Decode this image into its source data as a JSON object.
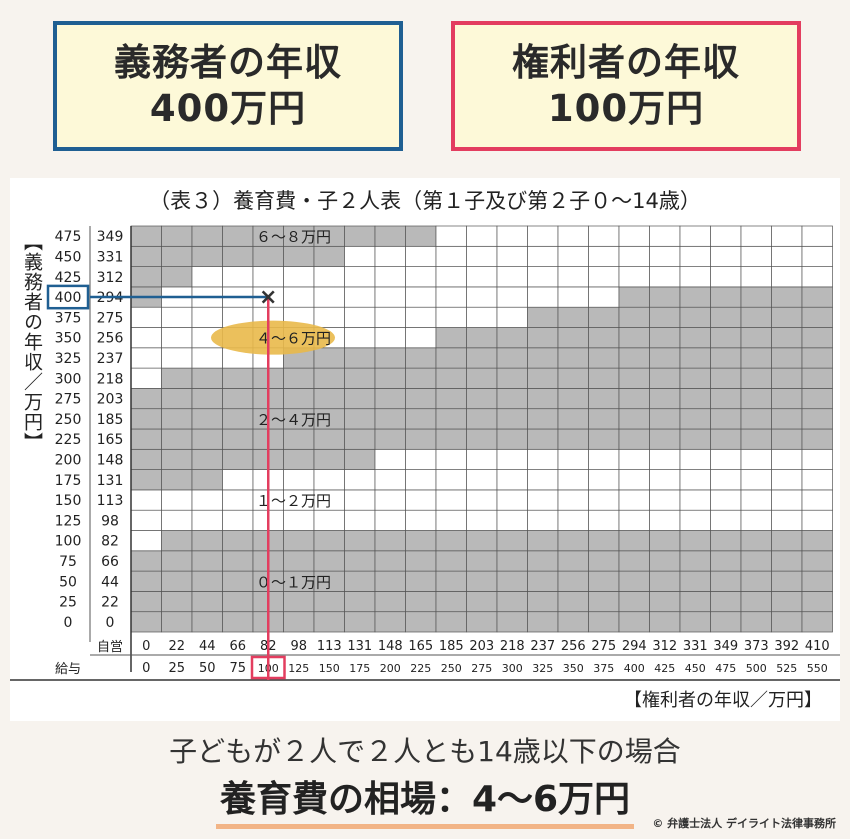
{
  "boxes": {
    "obligor": {
      "line1": "義務者の年収",
      "line2": "400万円",
      "border": "#1f5f92"
    },
    "entitled": {
      "line1": "権利者の年収",
      "line2": "100万円",
      "border": "#e33d5f"
    }
  },
  "chart_data": {
    "type": "heatmap",
    "title": "（表３）養育費・子２人表（第１子及び第２子０～14歳）",
    "ylabel": "【義務者の年収／万円】",
    "xlabel": "【権利者の年収／万円】",
    "y_salary": [
      "0",
      "25",
      "50",
      "75",
      "100",
      "125",
      "150",
      "175",
      "200",
      "225",
      "250",
      "275",
      "300",
      "325",
      "350",
      "375",
      "400",
      "425",
      "450",
      "475"
    ],
    "y_self": [
      "0",
      "22",
      "44",
      "66",
      "82",
      "98",
      "113",
      "131",
      "148",
      "165",
      "185",
      "203",
      "218",
      "237",
      "256",
      "275",
      "294",
      "312",
      "331",
      "349"
    ],
    "x_row_label_self": "自営",
    "x_row_label_salary": "給与",
    "x_self": [
      "0",
      "22",
      "44",
      "66",
      "82",
      "98",
      "113",
      "131",
      "148",
      "165",
      "185",
      "203",
      "218",
      "237",
      "256",
      "275",
      "294",
      "312",
      "331",
      "349",
      "373",
      "392",
      "410"
    ],
    "x_salary": [
      "0",
      "25",
      "50",
      "75",
      "100",
      "125",
      "150",
      "175",
      "200",
      "225",
      "250",
      "275",
      "300",
      "325",
      "350",
      "375",
      "400",
      "425",
      "450",
      "475",
      "500",
      "525",
      "550"
    ],
    "bands": [
      {
        "label": "０～１万円",
        "min": 0,
        "max": 1
      },
      {
        "label": "１～２万円",
        "min": 1,
        "max": 2
      },
      {
        "label": "２～４万円",
        "min": 2,
        "max": 4
      },
      {
        "label": "４～６万円",
        "min": 4,
        "max": 6
      },
      {
        "label": "６～８万円",
        "min": 6,
        "max": 8
      }
    ],
    "band_index_by_row": [
      [
        0,
        0,
        0,
        0,
        0,
        0,
        0,
        0,
        0,
        0,
        0,
        0,
        0,
        0,
        0,
        0,
        0,
        0,
        0,
        0,
        0,
        0,
        0
      ],
      [
        0,
        0,
        0,
        0,
        0,
        0,
        0,
        0,
        0,
        0,
        0,
        0,
        0,
        0,
        0,
        0,
        0,
        0,
        0,
        0,
        0,
        0,
        0
      ],
      [
        0,
        0,
        0,
        0,
        0,
        0,
        0,
        0,
        0,
        0,
        0,
        0,
        0,
        0,
        0,
        0,
        0,
        0,
        0,
        0,
        0,
        0,
        0
      ],
      [
        0,
        0,
        0,
        0,
        0,
        0,
        0,
        0,
        0,
        0,
        0,
        0,
        0,
        0,
        0,
        0,
        0,
        0,
        0,
        0,
        0,
        0,
        0
      ],
      [
        1,
        0,
        0,
        0,
        0,
        0,
        0,
        0,
        0,
        0,
        0,
        0,
        0,
        0,
        0,
        0,
        0,
        0,
        0,
        0,
        0,
        0,
        0
      ],
      [
        1,
        1,
        1,
        1,
        1,
        1,
        1,
        1,
        1,
        1,
        1,
        1,
        1,
        1,
        1,
        1,
        1,
        1,
        1,
        1,
        1,
        1,
        1
      ],
      [
        1,
        1,
        1,
        1,
        1,
        1,
        1,
        1,
        1,
        1,
        1,
        1,
        1,
        1,
        1,
        1,
        1,
        1,
        1,
        1,
        1,
        1,
        1
      ],
      [
        2,
        2,
        2,
        1,
        1,
        1,
        1,
        1,
        1,
        1,
        1,
        1,
        1,
        1,
        1,
        1,
        1,
        1,
        1,
        1,
        1,
        1,
        1
      ],
      [
        2,
        2,
        2,
        2,
        2,
        2,
        2,
        2,
        1,
        1,
        1,
        1,
        1,
        1,
        1,
        1,
        1,
        1,
        1,
        1,
        1,
        1,
        1
      ],
      [
        2,
        2,
        2,
        2,
        2,
        2,
        2,
        2,
        2,
        2,
        2,
        2,
        2,
        2,
        2,
        2,
        2,
        2,
        2,
        2,
        2,
        2,
        2
      ],
      [
        2,
        2,
        2,
        2,
        2,
        2,
        2,
        2,
        2,
        2,
        2,
        2,
        2,
        2,
        2,
        2,
        2,
        2,
        2,
        2,
        2,
        2,
        2
      ],
      [
        2,
        2,
        2,
        2,
        2,
        2,
        2,
        2,
        2,
        2,
        2,
        2,
        2,
        2,
        2,
        2,
        2,
        2,
        2,
        2,
        2,
        2,
        2
      ],
      [
        3,
        2,
        2,
        2,
        2,
        2,
        2,
        2,
        2,
        2,
        2,
        2,
        2,
        2,
        2,
        2,
        2,
        2,
        2,
        2,
        2,
        2,
        2
      ],
      [
        3,
        3,
        3,
        3,
        3,
        2,
        2,
        2,
        2,
        2,
        2,
        2,
        2,
        2,
        2,
        2,
        2,
        2,
        2,
        2,
        2,
        2,
        2
      ],
      [
        3,
        3,
        3,
        3,
        3,
        3,
        3,
        3,
        3,
        3,
        2,
        2,
        2,
        2,
        2,
        2,
        2,
        2,
        2,
        2,
        2,
        2,
        2
      ],
      [
        3,
        3,
        3,
        3,
        3,
        3,
        3,
        3,
        3,
        3,
        3,
        3,
        3,
        2,
        2,
        2,
        2,
        2,
        2,
        2,
        2,
        2,
        2
      ],
      [
        4,
        3,
        3,
        3,
        3,
        3,
        3,
        3,
        3,
        3,
        3,
        3,
        3,
        3,
        3,
        3,
        2,
        2,
        2,
        2,
        2,
        2,
        2
      ],
      [
        4,
        4,
        3,
        3,
        3,
        3,
        3,
        3,
        3,
        3,
        3,
        3,
        3,
        3,
        3,
        3,
        3,
        3,
        3,
        3,
        3,
        3,
        3
      ],
      [
        4,
        4,
        4,
        4,
        4,
        4,
        4,
        3,
        3,
        3,
        3,
        3,
        3,
        3,
        3,
        3,
        3,
        3,
        3,
        3,
        3,
        3,
        3
      ],
      [
        4,
        4,
        4,
        4,
        4,
        4,
        4,
        4,
        4,
        4,
        3,
        3,
        3,
        3,
        3,
        3,
        3,
        3,
        3,
        3,
        3,
        3,
        3
      ]
    ],
    "band_colors": [
      "#b9b9b9",
      "#ffffff"
    ],
    "highlight": {
      "obligor_salary": "400",
      "entitled_salary": "100",
      "result": "４～６万円"
    },
    "accent_blue": "#1f5f92",
    "accent_red": "#e33d5f",
    "ellipse_color": "#e9b94a"
  },
  "summary": {
    "line1": "子どもが２人で２人とも14歳以下の場合",
    "line2": "養育費の相場：4〜6万円"
  },
  "credit": "© 弁護士法人 デイライト法律事務所"
}
